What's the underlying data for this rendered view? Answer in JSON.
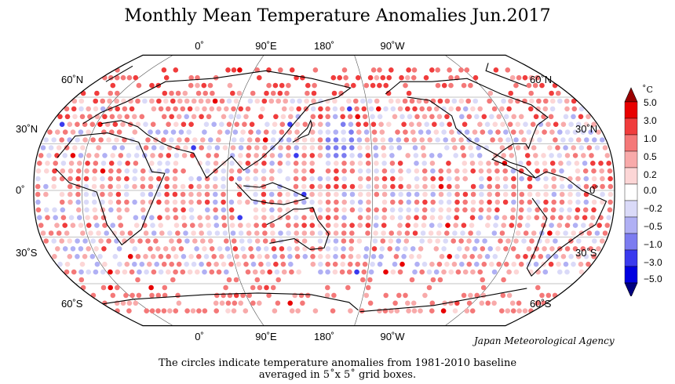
{
  "title": "Monthly Mean Temperature Anomalies Jun.2017",
  "map": {
    "top_longitude_labels": [
      "0˚",
      "90˚E",
      "180˚",
      "90˚W"
    ],
    "bottom_longitude_labels": [
      "0˚",
      "90˚E",
      "180˚",
      "90˚W"
    ],
    "latitude_labels": [
      "60˚N",
      "30˚N",
      "0˚",
      "30˚S",
      "60˚S"
    ],
    "projection": "Robinson-like pseudo-cylindrical, centered at 150˚E"
  },
  "legend": {
    "unit": "˚C",
    "ticks": [
      "5.0",
      "3.0",
      "1.0",
      "0.5",
      "0.2",
      "0.0",
      "−0.2",
      "−0.5",
      "−1.0",
      "−3.0",
      "−5.0"
    ],
    "colors": [
      "#e80000",
      "#f03c3c",
      "#f47878",
      "#f8aaaa",
      "#fcd6d6",
      "#ffffff",
      "#dadaf8",
      "#b0b0f4",
      "#7c7cf0",
      "#3a3aee",
      "#0000e0"
    ]
  },
  "credit": "Japan Meteorological Agency",
  "caption": {
    "line1": "The circles indicate temperature anomalies from 1981-2010 baseline",
    "line2": "averaged in 5˚x 5˚ grid boxes."
  }
}
